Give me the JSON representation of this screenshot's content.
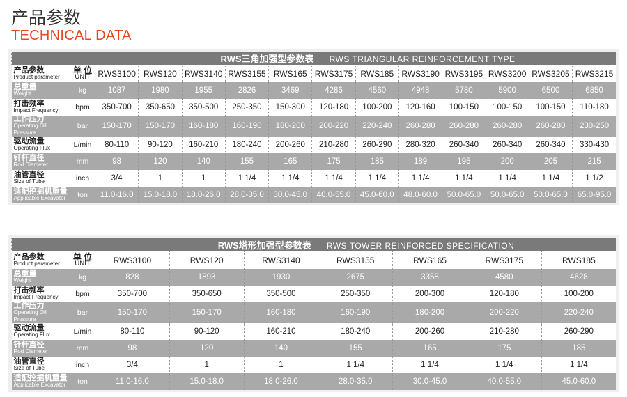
{
  "header": {
    "title_cn": "产品参数",
    "title_en": "TECHNICAL DATA"
  },
  "colors": {
    "accent": "#e8471f",
    "bar": "#7a7a7a",
    "stripe": "#a9a9a9"
  },
  "tables": [
    {
      "title_cn": "RWS三角加强型参数表",
      "title_en": "RWS TRIANGULAR REINFORCEMENT TYPE",
      "head": {
        "cn": "产品参数",
        "en": "Product parameter",
        "unit_cn": "单 位",
        "unit_en": "UNIT"
      },
      "models": [
        "RWS3100",
        "RWS120",
        "RWS3140",
        "RWS3155",
        "RWS165",
        "RWS3175",
        "RWS185",
        "RWS3190",
        "RWS3195",
        "RWS3200",
        "RWS3205",
        "RWS3215"
      ],
      "rows": [
        {
          "cn": "总重量",
          "en": "Weight",
          "unit": "kg",
          "values": [
            "1087",
            "1980",
            "1955",
            "2826",
            "3469",
            "4286",
            "4560",
            "4948",
            "5780",
            "5900",
            "6500",
            "6850"
          ]
        },
        {
          "cn": "打击频率",
          "en": "Impact Frequency",
          "unit": "bpm",
          "values": [
            "350-700",
            "350-650",
            "350-500",
            "250-350",
            "150-300",
            "120-180",
            "100-200",
            "120-160",
            "100-150",
            "100-150",
            "100-150",
            "110-180"
          ]
        },
        {
          "cn": "工作压力",
          "en": "Operating Oil Pressure",
          "unit": "bar",
          "values": [
            "150-170",
            "150-170",
            "160-180",
            "160-190",
            "180-200",
            "200-220",
            "220-240",
            "260-280",
            "260-280",
            "260-280",
            "260-280",
            "230-250"
          ]
        },
        {
          "cn": "驱动流量",
          "en": "Operating Flux",
          "unit": "L/min",
          "values": [
            "80-110",
            "90-120",
            "160-210",
            "180-240",
            "200-260",
            "210-280",
            "260-290",
            "280-320",
            "260-340",
            "260-340",
            "260-340",
            "330-430"
          ]
        },
        {
          "cn": "钎杆直径",
          "en": "Rod Diameter",
          "unit": "mm",
          "values": [
            "98",
            "120",
            "140",
            "155",
            "165",
            "175",
            "185",
            "189",
            "195",
            "200",
            "205",
            "215"
          ]
        },
        {
          "cn": "油管直径",
          "en": "Size of Tube",
          "unit": "inch",
          "values": [
            "3/4",
            "1",
            "1",
            "1 1/4",
            "1 1/4",
            "1 1/4",
            "1 1/4",
            "1 1/4",
            "1 1/4",
            "1 1/4",
            "1 1/4",
            "1 1/2"
          ]
        },
        {
          "cn": "适配挖掘机重量",
          "en": "Applicable Excavator",
          "unit": "ton",
          "values": [
            "11.0-16.0",
            "15.0-18.0",
            "18.0-26.0",
            "28.0-35.0",
            "30.0-45.0",
            "40.0-55.0",
            "45.0-60.0",
            "48.0-60.0",
            "50.0-65.0",
            "50.0-65.0",
            "50.0-65.0",
            "65.0-95.0"
          ]
        }
      ]
    },
    {
      "title_cn": "RWS塔形加强型参数表",
      "title_en": "RWS TOWER REINFORCED SPECIFICATION",
      "head": {
        "cn": "产品参数",
        "en": "Product parameter",
        "unit_cn": "单 位",
        "unit_en": "UNIT"
      },
      "models": [
        "RWS3100",
        "RWS120",
        "RWS3140",
        "RWS3155",
        "RWS165",
        "RWS3175",
        "RWS185"
      ],
      "rows": [
        {
          "cn": "总重量",
          "en": "Weight",
          "unit": "kg",
          "values": [
            "828",
            "1893",
            "1930",
            "2675",
            "3358",
            "4580",
            "4628"
          ]
        },
        {
          "cn": "打击频率",
          "en": "Impact Frequency",
          "unit": "bpm",
          "values": [
            "350-700",
            "350-650",
            "350-500",
            "250-350",
            "200-300",
            "120-180",
            "100-200"
          ]
        },
        {
          "cn": "工作压力",
          "en": "Operating Oil Pressure",
          "unit": "bar",
          "values": [
            "150-170",
            "150-170",
            "160-180",
            "160-190",
            "180-200",
            "200-220",
            "220-240"
          ]
        },
        {
          "cn": "驱动流量",
          "en": "Operating Flux",
          "unit": "L/min",
          "values": [
            "80-110",
            "90-120",
            "160-210",
            "180-240",
            "200-260",
            "210-280",
            "260-290"
          ]
        },
        {
          "cn": "钎杆直径",
          "en": "Rod Diameter",
          "unit": "mm",
          "values": [
            "98",
            "120",
            "140",
            "155",
            "165",
            "175",
            "185"
          ]
        },
        {
          "cn": "油管直径",
          "en": "Size of Tube",
          "unit": "inch",
          "values": [
            "3/4",
            "1",
            "1",
            "1 1/4",
            "1 1/4",
            "1 1/4",
            "1 1/4"
          ]
        },
        {
          "cn": "适配挖掘机重量",
          "en": "Applicable Excavator",
          "unit": "ton",
          "values": [
            "11.0-16.0",
            "15.0-18.0",
            "18.0-26.0",
            "28.0-35.0",
            "30.0-45.0",
            "40.0-55.0",
            "45.0-60.0"
          ]
        }
      ]
    }
  ]
}
